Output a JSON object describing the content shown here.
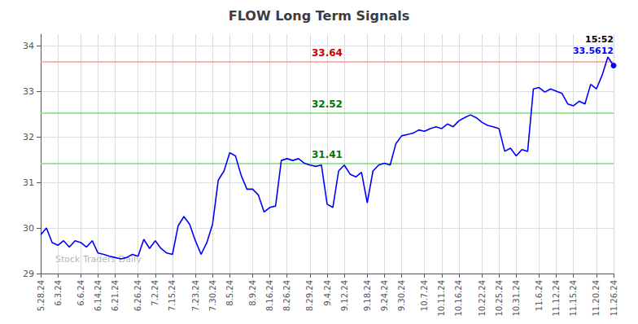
{
  "chart_data": {
    "type": "line",
    "title": "FLOW Long Term Signals",
    "watermark": "Stock Traders Daily",
    "color": "blue",
    "categories": [
      "5.28.24",
      null,
      null,
      "6.3.24",
      null,
      null,
      null,
      "6.6.24",
      null,
      null,
      "6.14.24",
      null,
      null,
      "6.21.24",
      null,
      null,
      null,
      "6.26.24",
      null,
      null,
      "7.2.24",
      null,
      null,
      "7.15.24",
      null,
      null,
      null,
      "7.23.24",
      null,
      null,
      "7.30.24",
      null,
      null,
      "8.5.24",
      null,
      null,
      null,
      "8.9.24",
      null,
      null,
      "8.16.24",
      null,
      null,
      "8.26.24",
      null,
      null,
      null,
      "8.29.24",
      null,
      null,
      "9.4.24",
      null,
      null,
      "9.12.24",
      null,
      null,
      null,
      "9.18.24",
      null,
      null,
      "9.24.24",
      null,
      null,
      "9.30.24",
      null,
      null,
      null,
      "10.7.24",
      null,
      null,
      "10.11.24",
      null,
      null,
      "10.16.24",
      null,
      null,
      null,
      "10.22.24",
      null,
      null,
      "10.25.24",
      null,
      null,
      "10.31.24",
      null,
      null,
      null,
      "11.6.24",
      null,
      null,
      "11.12.24",
      null,
      null,
      "11.15.24",
      null,
      null,
      null,
      "11.20.24",
      null,
      null,
      "11.26.24"
    ],
    "values": [
      29.85,
      30.0,
      29.68,
      29.62,
      29.72,
      29.58,
      29.72,
      29.68,
      29.58,
      29.72,
      29.45,
      29.42,
      29.38,
      29.35,
      29.32,
      29.35,
      29.42,
      29.38,
      29.75,
      29.55,
      29.72,
      29.55,
      29.45,
      29.42,
      30.05,
      30.25,
      30.08,
      29.72,
      29.42,
      29.68,
      30.08,
      31.05,
      31.25,
      31.65,
      31.58,
      31.15,
      30.85,
      30.85,
      30.72,
      30.35,
      30.45,
      30.48,
      31.48,
      31.52,
      31.48,
      31.52,
      31.42,
      31.38,
      31.35,
      31.38,
      30.52,
      30.45,
      31.25,
      31.38,
      31.18,
      31.12,
      31.22,
      30.55,
      31.25,
      31.38,
      31.42,
      31.38,
      31.85,
      32.02,
      32.05,
      32.08,
      32.15,
      32.12,
      32.18,
      32.22,
      32.18,
      32.28,
      32.22,
      32.35,
      32.42,
      32.48,
      32.42,
      32.32,
      32.25,
      32.22,
      32.18,
      31.68,
      31.75,
      31.58,
      31.72,
      31.68,
      33.05,
      33.08,
      32.98,
      33.05,
      33.0,
      32.95,
      32.72,
      32.68,
      32.78,
      32.72,
      33.15,
      33.05,
      33.35,
      33.75,
      33.5612
    ],
    "reference_lines": [
      {
        "value": 33.64,
        "label": "33.64",
        "color": "#ff9999",
        "label_color": "#cc0000"
      },
      {
        "value": 32.52,
        "label": "32.52",
        "color": "#77dd77",
        "label_color": "#007700"
      },
      {
        "value": 31.41,
        "label": "31.41",
        "color": "#77dd77",
        "label_color": "#007700"
      }
    ],
    "last_point_annotation": {
      "time": "15:52",
      "price_label": "33.5612",
      "color": "blue"
    },
    "ylim": [
      29.0,
      34.25
    ],
    "yticks": [
      29,
      30,
      31,
      32,
      33,
      34
    ],
    "grid": true
  }
}
